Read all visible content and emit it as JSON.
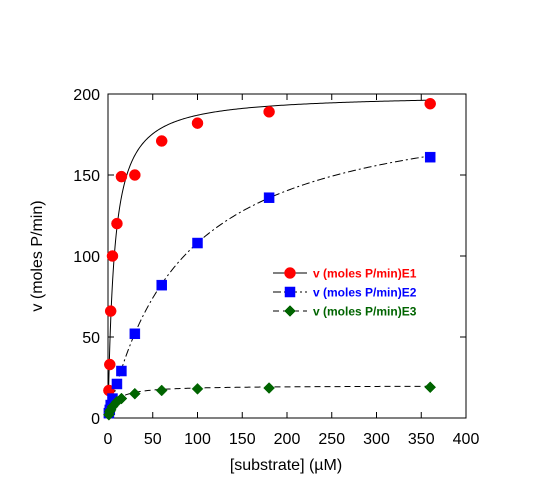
{
  "chart_data": {
    "type": "scatter",
    "xlabel": "[substrate] (µM)",
    "ylabel": "v (moles P/min)",
    "xlim": [
      0,
      400
    ],
    "ylim": [
      0,
      200
    ],
    "xticks": [
      0,
      50,
      100,
      150,
      200,
      250,
      300,
      350,
      400
    ],
    "yticks": [
      0,
      50,
      100,
      150,
      200
    ],
    "grid": false,
    "legend_position": "center-right",
    "series": [
      {
        "name": "v (moles P/min)E1",
        "color": "#ff0000",
        "marker": "circle",
        "line_style": "solid",
        "fit": {
          "vmax": 200,
          "km": 7
        },
        "x": [
          1,
          2,
          3,
          5,
          10,
          15,
          30,
          60,
          100,
          180,
          360
        ],
        "y": [
          17,
          33,
          66,
          100,
          120,
          149,
          150,
          171,
          182,
          189,
          194
        ]
      },
      {
        "name": "v (moles P/min)E2",
        "color": "#0000ff",
        "marker": "square",
        "line_style": "dashdot",
        "fit": {
          "vmax": 200,
          "km": 85
        },
        "x": [
          1,
          2,
          3,
          5,
          10,
          15,
          30,
          60,
          100,
          180,
          360
        ],
        "y": [
          3,
          5,
          8,
          12,
          21,
          29,
          52,
          82,
          108,
          136,
          161
        ]
      },
      {
        "name": "v (moles P/min)E3",
        "color": "#006400",
        "marker": "diamond",
        "line_style": "dashed",
        "fit": {
          "vmax": 20,
          "km": 8
        },
        "x": [
          1,
          2,
          3,
          5,
          10,
          15,
          30,
          60,
          100,
          180,
          360
        ],
        "y": [
          2,
          4,
          5,
          7,
          10,
          12,
          15,
          17,
          18,
          18.5,
          19
        ]
      }
    ]
  }
}
